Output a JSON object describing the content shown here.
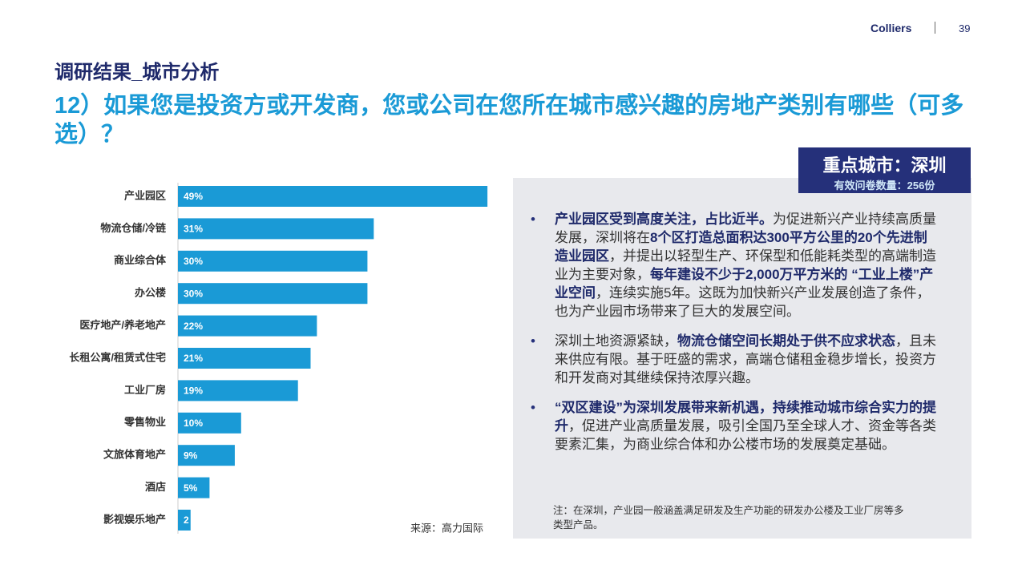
{
  "header": {
    "brand": "Colliers",
    "page": "39"
  },
  "subtitle": "调研结果_城市分析",
  "title": "12）如果您是投资方或开发商，您或公司在您所在城市感兴趣的房地产类别有哪些（可多选）？",
  "city_box": {
    "city": "重点城市：深圳",
    "sample": "有效问卷数量：256份"
  },
  "chart_data": {
    "type": "hbar",
    "color": "#1a9ad6",
    "categories": [
      "产业园区",
      "物流仓储/冷链",
      "商业综合体",
      "办公楼",
      "医疗地产/养老地产",
      "长租公寓/租赁式住宅",
      "工业厂房",
      "零售物业",
      "文旅体育地产",
      "酒店",
      "影视娱乐地产"
    ],
    "values": [
      49,
      31,
      30,
      30,
      22,
      21,
      19,
      10,
      9,
      5,
      2
    ],
    "value_labels": [
      "49%",
      "31%",
      "30%",
      "30%",
      "22%",
      "21%",
      "19%",
      "10%",
      "9%",
      "5%",
      "2"
    ],
    "source": "来源：高力国际"
  },
  "bullets": [
    [
      {
        "text": "产业园区受到高度关注，占比近半。",
        "bold": true
      },
      {
        "text": "为促进新兴产业持续高质量发展，深圳将在",
        "bold": false
      },
      {
        "text": "8个区打造总面积达300平方公里的20个先进制造业园区",
        "bold": true
      },
      {
        "text": "，并提出以轻型生产、环保型和低能耗类型的高端制造业为主要对象，",
        "bold": false
      },
      {
        "text": "每年建设不少于2,000万平方米的 “工业上楼”产业空间",
        "bold": true
      },
      {
        "text": "，连续实施5年。这既为加快新兴产业发展创造了条件，也为产业园市场带来了巨大的发展空间。",
        "bold": false
      }
    ],
    [
      {
        "text": "深圳土地资源紧缺，",
        "bold": false
      },
      {
        "text": "物流仓储空间长期处于供不应求状态",
        "bold": true
      },
      {
        "text": "，且未来供应有限。基于旺盛的需求，高端仓储租金稳步增长，投资方和开发商对其继续保持浓厚兴趣。",
        "bold": false
      }
    ],
    [
      {
        "text": "“双区建设”为深圳发展带来新机遇，持续推动城市综合实力的提升",
        "bold": true
      },
      {
        "text": "，促进产业高质量发展，吸引全国乃至全球人才、资金等各类要素汇集，为商业综合体和办公楼市场的发展奠定基础。",
        "bold": false
      }
    ]
  ],
  "note": "注：在深圳，产业园一般涵盖满足研发及生产功能的研发办公楼及工业厂房等多类型产品。"
}
